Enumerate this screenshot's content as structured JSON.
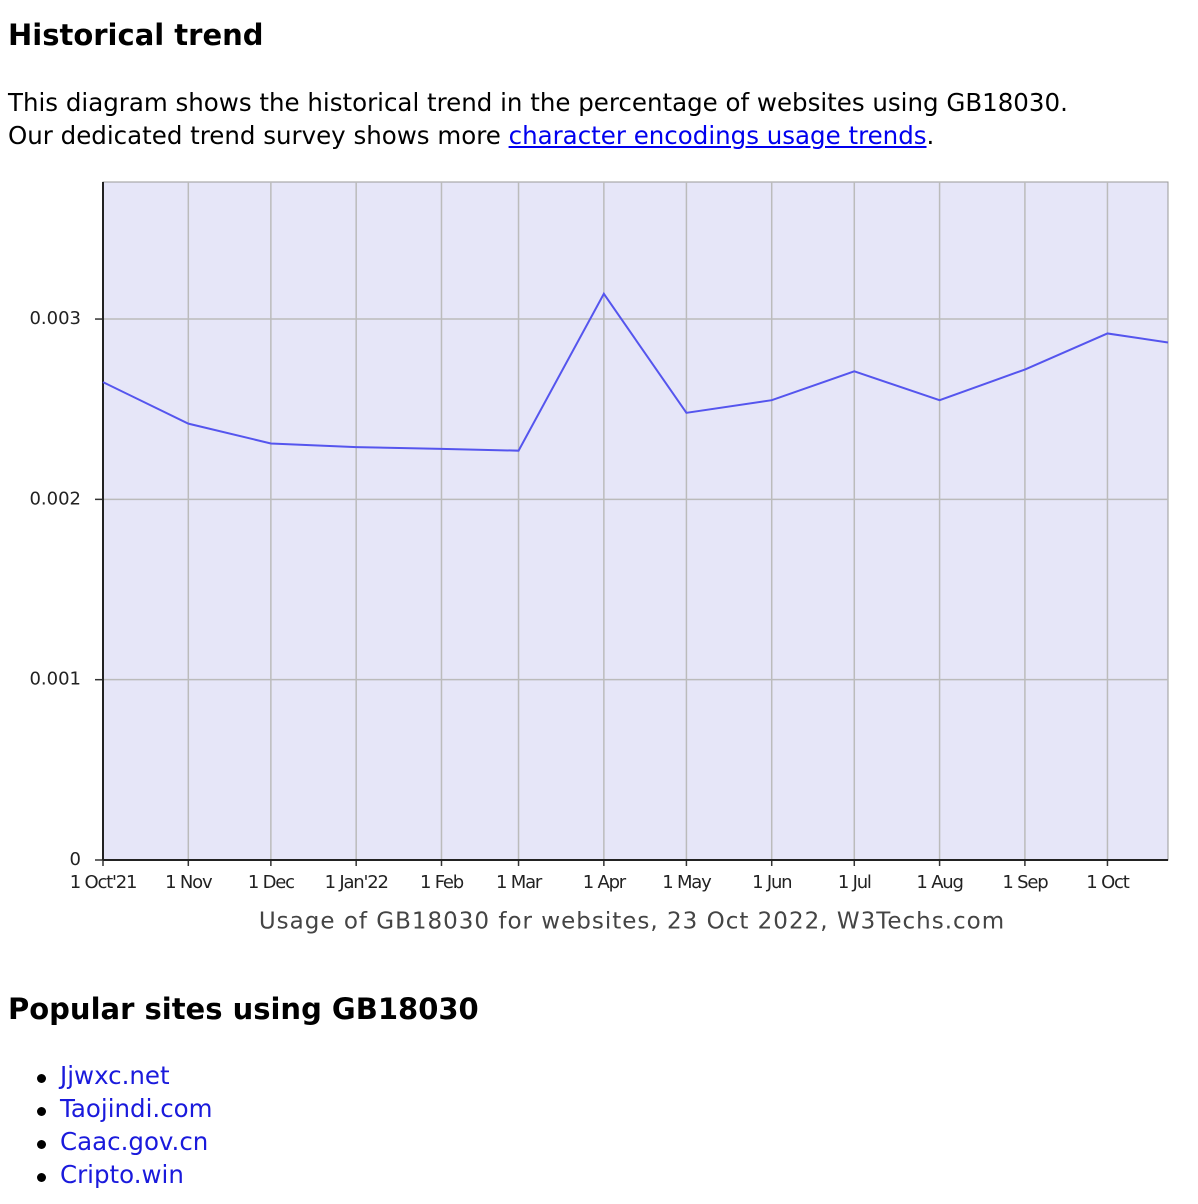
{
  "header": {
    "title": "Historical trend"
  },
  "intro": {
    "line1": "This diagram shows the historical trend in the percentage of websites using GB18030.",
    "line2_before": "Our dedicated trend survey shows more ",
    "link": "character encodings usage trends",
    "line2_after": "."
  },
  "chart_data": {
    "type": "line",
    "caption": "Usage of GB18030 for websites, 23 Oct 2022, W3Techs.com",
    "x": [
      "2021-10-01",
      "2021-11-01",
      "2021-12-01",
      "2022-01-01",
      "2022-02-01",
      "2022-03-01",
      "2022-04-01",
      "2022-05-01",
      "2022-06-01",
      "2022-07-01",
      "2022-08-01",
      "2022-09-01",
      "2022-10-01",
      "2022-10-23"
    ],
    "series": [
      {
        "name": "GB18030",
        "color": "#5555ee",
        "values": [
          0.00265,
          0.00242,
          0.00231,
          0.00229,
          0.00228,
          0.00227,
          0.00314,
          0.00248,
          0.00255,
          0.00271,
          0.00255,
          0.00272,
          0.00292,
          0.00287
        ]
      }
    ],
    "xlim": [
      "2021-10-01",
      "2022-10-23"
    ],
    "xticks": [
      {
        "value": "2021-10-01",
        "label": "1 Oct'21"
      },
      {
        "value": "2021-11-01",
        "label": "1 Nov"
      },
      {
        "value": "2021-12-01",
        "label": "1 Dec"
      },
      {
        "value": "2022-01-01",
        "label": "1 Jan'22"
      },
      {
        "value": "2022-02-01",
        "label": "1 Feb"
      },
      {
        "value": "2022-03-01",
        "label": "1 Mar"
      },
      {
        "value": "2022-04-01",
        "label": "1 Apr"
      },
      {
        "value": "2022-05-01",
        "label": "1 May"
      },
      {
        "value": "2022-06-01",
        "label": "1 Jun"
      },
      {
        "value": "2022-07-01",
        "label": "1 Jul"
      },
      {
        "value": "2022-08-01",
        "label": "1 Aug"
      },
      {
        "value": "2022-09-01",
        "label": "1 Sep"
      },
      {
        "value": "2022-10-01",
        "label": "1 Oct"
      }
    ],
    "ylim": [
      0,
      0.00376
    ],
    "yticks": [
      0,
      0.001,
      0.002,
      0.003
    ],
    "grid": true,
    "background": "#e6e6f8"
  },
  "popular": {
    "title": "Popular sites using GB18030",
    "sites": [
      "Jjwxc.net",
      "Taojindi.com",
      "Caac.gov.cn",
      "Cripto.win"
    ]
  }
}
